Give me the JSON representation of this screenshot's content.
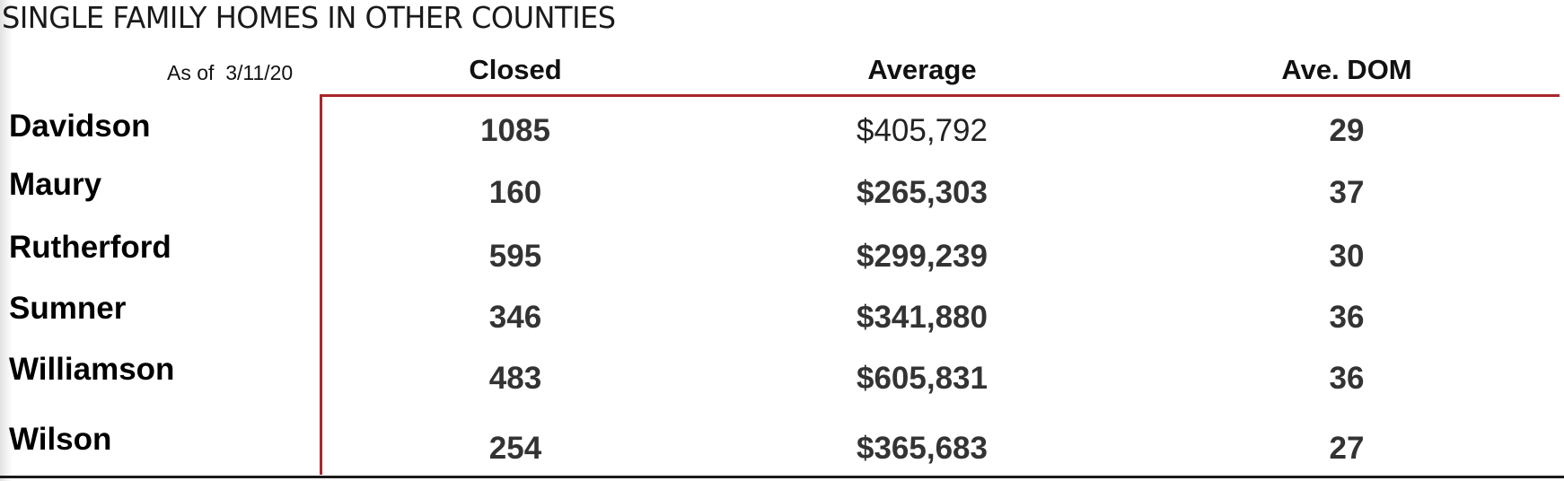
{
  "title": "SINGLE FAMILY HOMES IN OTHER COUNTIES",
  "as_of": "As of  3/11/20",
  "headers": [
    "Closed",
    "Average",
    "Ave. DOM"
  ],
  "rows": [
    {
      "county": "Davidson",
      "closed": "1085",
      "average": "$405,792",
      "dom": "29"
    },
    {
      "county": "Maury",
      "closed": "160",
      "average": "$265,303",
      "dom": "37"
    },
    {
      "county": "Rutherford",
      "closed": "595",
      "average": "$299,239",
      "dom": "30"
    },
    {
      "county": "Sumner",
      "closed": "346",
      "average": "$341,880",
      "dom": "36"
    },
    {
      "county": "Williamson",
      "closed": "483",
      "average": "$605,831",
      "dom": "36"
    },
    {
      "county": "Wilson",
      "closed": "254",
      "average": "$365,683",
      "dom": "27"
    }
  ],
  "colors": {
    "accent_rule": "#a8262b",
    "bottom_rule": "#1a1a1a"
  }
}
